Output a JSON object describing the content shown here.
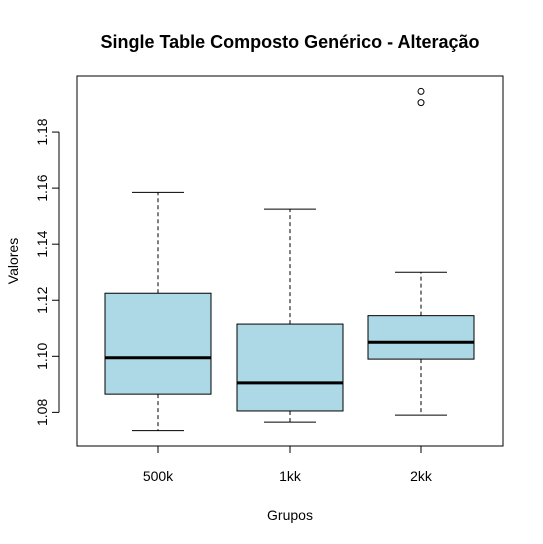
{
  "chart_data": {
    "type": "boxplot",
    "title": "Single Table Composto Genérico - Alteração",
    "xlabel": "Grupos",
    "ylabel": "Valores",
    "categories": [
      "500k",
      "1kk",
      "2kk"
    ],
    "ylim": [
      1.068,
      1.2
    ],
    "yticks": [
      1.08,
      1.1,
      1.12,
      1.14,
      1.16,
      1.18
    ],
    "ytick_labels": [
      "1.08",
      "1.10",
      "1.12",
      "1.14",
      "1.16",
      "1.18"
    ],
    "box_fill": "#add8e6",
    "boxes": [
      {
        "category": "500k",
        "whisker_low": 1.0735,
        "q1": 1.0865,
        "median": 1.0995,
        "q3": 1.1225,
        "whisker_high": 1.1585,
        "outliers": []
      },
      {
        "category": "1kk",
        "whisker_low": 1.0765,
        "q1": 1.0805,
        "median": 1.0905,
        "q3": 1.1115,
        "whisker_high": 1.1525,
        "outliers": []
      },
      {
        "category": "2kk",
        "whisker_low": 1.079,
        "q1": 1.099,
        "median": 1.105,
        "q3": 1.1145,
        "whisker_high": 1.13,
        "outliers": [
          1.1905,
          1.1945
        ]
      }
    ]
  }
}
